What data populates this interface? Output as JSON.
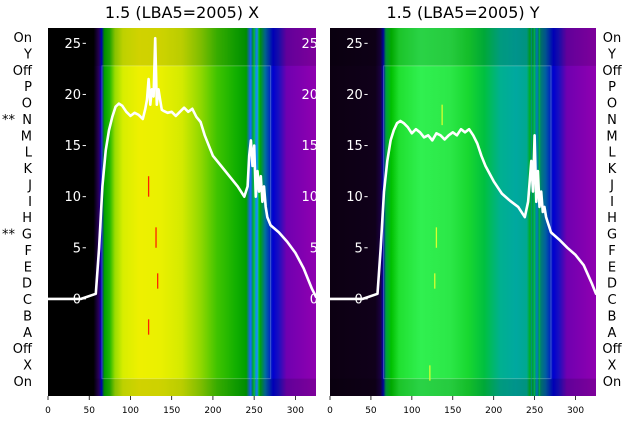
{
  "chart_data": [
    {
      "type": "line",
      "title": "1.5 (LBA5=2005) X",
      "xlabel": "",
      "ylabel": "",
      "xlim": [
        0,
        325
      ],
      "ylim": [
        -9.5,
        26.5
      ],
      "xticks": [
        "0",
        "50",
        "100",
        "150",
        "200",
        "250",
        "300"
      ],
      "yticks": [
        "0",
        "5",
        "10",
        "15",
        "20",
        "25"
      ],
      "row_labels": [
        "On",
        "Y",
        "Off",
        "P",
        "O",
        "N",
        "M",
        "L",
        "K",
        "J",
        "I",
        "H",
        "G",
        "F",
        "E",
        "D",
        "C",
        "B",
        "A",
        "Off",
        "X",
        "On"
      ],
      "row_markers": {
        "N": "**",
        "G": "**"
      },
      "background": "spectrogram heatmap",
      "colormap": "black-purple-blue-green-yellow",
      "series": [
        {
          "x": [
            0,
            40,
            58,
            62,
            66,
            70,
            74,
            78,
            82,
            86,
            90,
            95,
            100,
            105,
            110,
            115,
            118,
            120,
            122,
            124,
            126,
            128,
            130,
            132,
            134,
            136,
            138,
            140,
            145,
            150,
            155,
            160,
            165,
            170,
            175,
            180,
            185,
            190,
            200,
            210,
            220,
            230,
            238,
            242,
            244,
            246,
            248,
            250,
            252,
            254,
            256,
            258,
            260,
            262,
            264,
            266,
            270,
            280,
            290,
            300,
            310,
            320,
            325
          ],
          "y": [
            0,
            0,
            0.5,
            5,
            11,
            14.5,
            16.5,
            17.8,
            18.8,
            19.1,
            18.9,
            18.3,
            17.9,
            18.2,
            18.0,
            17.6,
            18.6,
            19.5,
            21.5,
            19.0,
            20.5,
            19.8,
            25.5,
            19.0,
            20.5,
            19.5,
            18.5,
            18.4,
            18.2,
            18.3,
            17.9,
            18.3,
            18.7,
            18.3,
            18.6,
            17.8,
            17.3,
            16.0,
            14.0,
            13.0,
            12.0,
            11.0,
            10.0,
            11.0,
            14.0,
            15.5,
            13.0,
            15.0,
            10.0,
            12.5,
            10.5,
            12.0,
            9.5,
            11.0,
            9.0,
            8.0,
            7.2,
            6.5,
            5.6,
            4.5,
            3.0,
            1.0,
            0.2
          ]
        }
      ]
    },
    {
      "type": "line",
      "title": "1.5 (LBA5=2005) Y",
      "xlabel": "",
      "ylabel": "",
      "xlim": [
        0,
        325
      ],
      "ylim": [
        -9.5,
        26.5
      ],
      "xticks": [
        "0",
        "50",
        "100",
        "150",
        "200",
        "250",
        "300"
      ],
      "yticks": [
        "0",
        "5",
        "10",
        "15",
        "20",
        "25"
      ],
      "row_labels": [
        "On",
        "Y",
        "Off",
        "P",
        "O",
        "N",
        "M",
        "L",
        "K",
        "J",
        "I",
        "H",
        "G",
        "F",
        "E",
        "D",
        "C",
        "B",
        "A",
        "Off",
        "X",
        "On"
      ],
      "background": "spectrogram heatmap",
      "colormap": "black-purple-blue-green-yellow",
      "series": [
        {
          "x": [
            0,
            40,
            58,
            62,
            66,
            70,
            74,
            78,
            82,
            86,
            90,
            95,
            100,
            105,
            110,
            115,
            120,
            125,
            130,
            135,
            140,
            145,
            150,
            155,
            160,
            165,
            170,
            175,
            180,
            185,
            190,
            200,
            210,
            220,
            230,
            238,
            242,
            244,
            246,
            248,
            250,
            252,
            254,
            256,
            258,
            260,
            262,
            264,
            266,
            270,
            280,
            290,
            300,
            310,
            320,
            325
          ],
          "y": [
            0,
            0,
            0.5,
            5,
            10.5,
            13.5,
            15.5,
            16.5,
            17.2,
            17.4,
            17.2,
            16.8,
            16.2,
            16.6,
            16.3,
            15.8,
            16.0,
            15.5,
            16.2,
            16.0,
            15.6,
            16.0,
            16.3,
            16.0,
            16.6,
            16.3,
            16.6,
            16.0,
            15.2,
            14.0,
            13.0,
            11.5,
            10.3,
            9.6,
            9.0,
            8.0,
            9.5,
            11.5,
            13.5,
            10.5,
            16.0,
            9.5,
            12.5,
            9.0,
            10.5,
            8.5,
            9.0,
            8.0,
            7.5,
            6.5,
            5.8,
            5.0,
            4.3,
            3.3,
            1.5,
            0.5
          ]
        }
      ]
    }
  ]
}
